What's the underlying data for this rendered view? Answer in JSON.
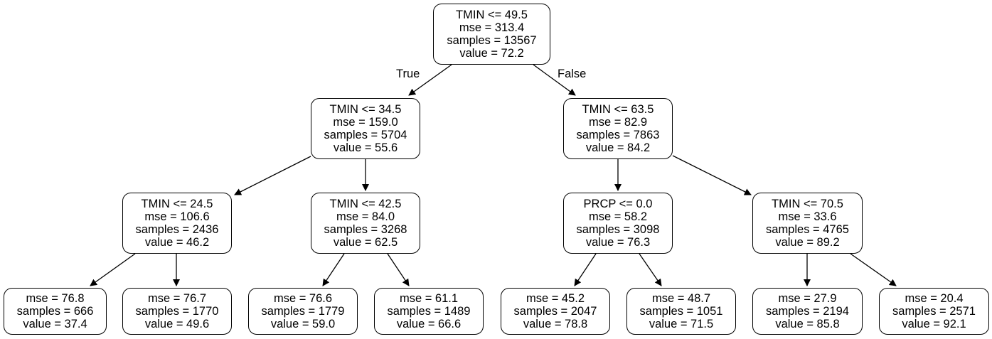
{
  "tree": {
    "nodes": [
      {
        "id": "n0",
        "lines": [
          "TMIN <= 49.5",
          "mse = 313.4",
          "samples = 13567",
          "value = 72.2"
        ]
      },
      {
        "id": "n1",
        "lines": [
          "TMIN <= 34.5",
          "mse = 159.0",
          "samples = 5704",
          "value = 55.6"
        ]
      },
      {
        "id": "n2",
        "lines": [
          "TMIN <= 63.5",
          "mse = 82.9",
          "samples = 7863",
          "value = 84.2"
        ]
      },
      {
        "id": "n3",
        "lines": [
          "TMIN <= 24.5",
          "mse = 106.6",
          "samples = 2436",
          "value = 46.2"
        ]
      },
      {
        "id": "n4",
        "lines": [
          "TMIN <= 42.5",
          "mse = 84.0",
          "samples = 3268",
          "value = 62.5"
        ]
      },
      {
        "id": "n5",
        "lines": [
          "PRCP <= 0.0",
          "mse = 58.2",
          "samples = 3098",
          "value = 76.3"
        ]
      },
      {
        "id": "n6",
        "lines": [
          "TMIN <= 70.5",
          "mse = 33.6",
          "samples = 4765",
          "value = 89.2"
        ]
      },
      {
        "id": "n7",
        "lines": [
          "mse = 76.8",
          "samples = 666",
          "value = 37.4"
        ]
      },
      {
        "id": "n8",
        "lines": [
          "mse = 76.7",
          "samples = 1770",
          "value = 49.6"
        ]
      },
      {
        "id": "n9",
        "lines": [
          "mse = 76.6",
          "samples = 1779",
          "value = 59.0"
        ]
      },
      {
        "id": "n10",
        "lines": [
          "mse = 61.1",
          "samples = 1489",
          "value = 66.6"
        ]
      },
      {
        "id": "n11",
        "lines": [
          "mse = 45.2",
          "samples = 2047",
          "value = 78.8"
        ]
      },
      {
        "id": "n12",
        "lines": [
          "mse = 48.7",
          "samples = 1051",
          "value = 71.5"
        ]
      },
      {
        "id": "n13",
        "lines": [
          "mse = 27.9",
          "samples = 2194",
          "value = 85.8"
        ]
      },
      {
        "id": "n14",
        "lines": [
          "mse = 20.4",
          "samples = 2571",
          "value = 92.1"
        ]
      }
    ],
    "edge_labels": {
      "true_label": "True",
      "false_label": "False"
    }
  }
}
